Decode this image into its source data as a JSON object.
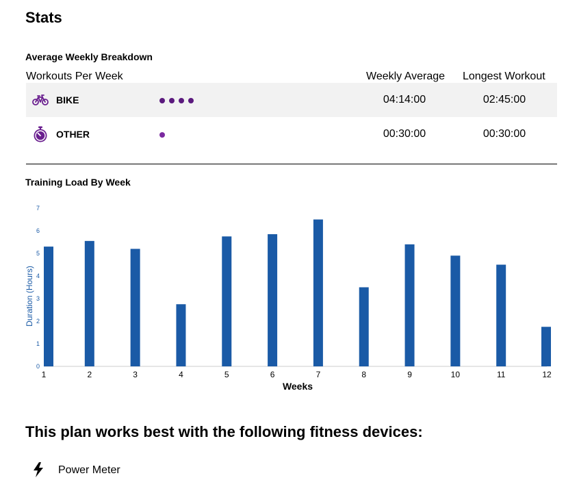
{
  "page": {
    "title": "Stats"
  },
  "breakdown": {
    "title": "Average Weekly Breakdown",
    "columns": {
      "workouts_per_week": "Workouts Per Week",
      "weekly_average": "Weekly Average",
      "longest_workout": "Longest Workout"
    },
    "rows": [
      {
        "icon": "bike-icon",
        "label": "BIKE",
        "workouts_per_week": 4,
        "dot_color": "#5b1a7e",
        "weekly_average": "04:14:00",
        "longest_workout": "02:45:00"
      },
      {
        "icon": "stopwatch-icon",
        "label": "OTHER",
        "workouts_per_week": 1,
        "dot_color": "#7b2aa0",
        "weekly_average": "00:30:00",
        "longest_workout": "00:30:00"
      }
    ]
  },
  "training_load": {
    "title": "Training Load By Week"
  },
  "chart_data": {
    "type": "bar",
    "categories": [
      "1",
      "2",
      "3",
      "4",
      "5",
      "6",
      "7",
      "8",
      "9",
      "10",
      "11",
      "12"
    ],
    "values": [
      5.3,
      5.55,
      5.2,
      2.75,
      5.75,
      5.85,
      6.5,
      3.5,
      5.4,
      4.9,
      4.5,
      1.75
    ],
    "xlabel": "Weeks",
    "ylabel": "Duration (Hours)",
    "ylim": [
      0,
      7
    ],
    "yticks": [
      "0",
      "1",
      "2",
      "3",
      "4",
      "5",
      "6",
      "7"
    ],
    "bar_color": "#1a5aa6",
    "axis_label_color": "#1a5aa6",
    "grid": false
  },
  "devices": {
    "title": "This plan works best with the following fitness devices:",
    "items": [
      {
        "icon": "lightning-bolt-icon",
        "label": "Power Meter"
      }
    ]
  },
  "colors": {
    "purple": "#6a1f8f"
  }
}
